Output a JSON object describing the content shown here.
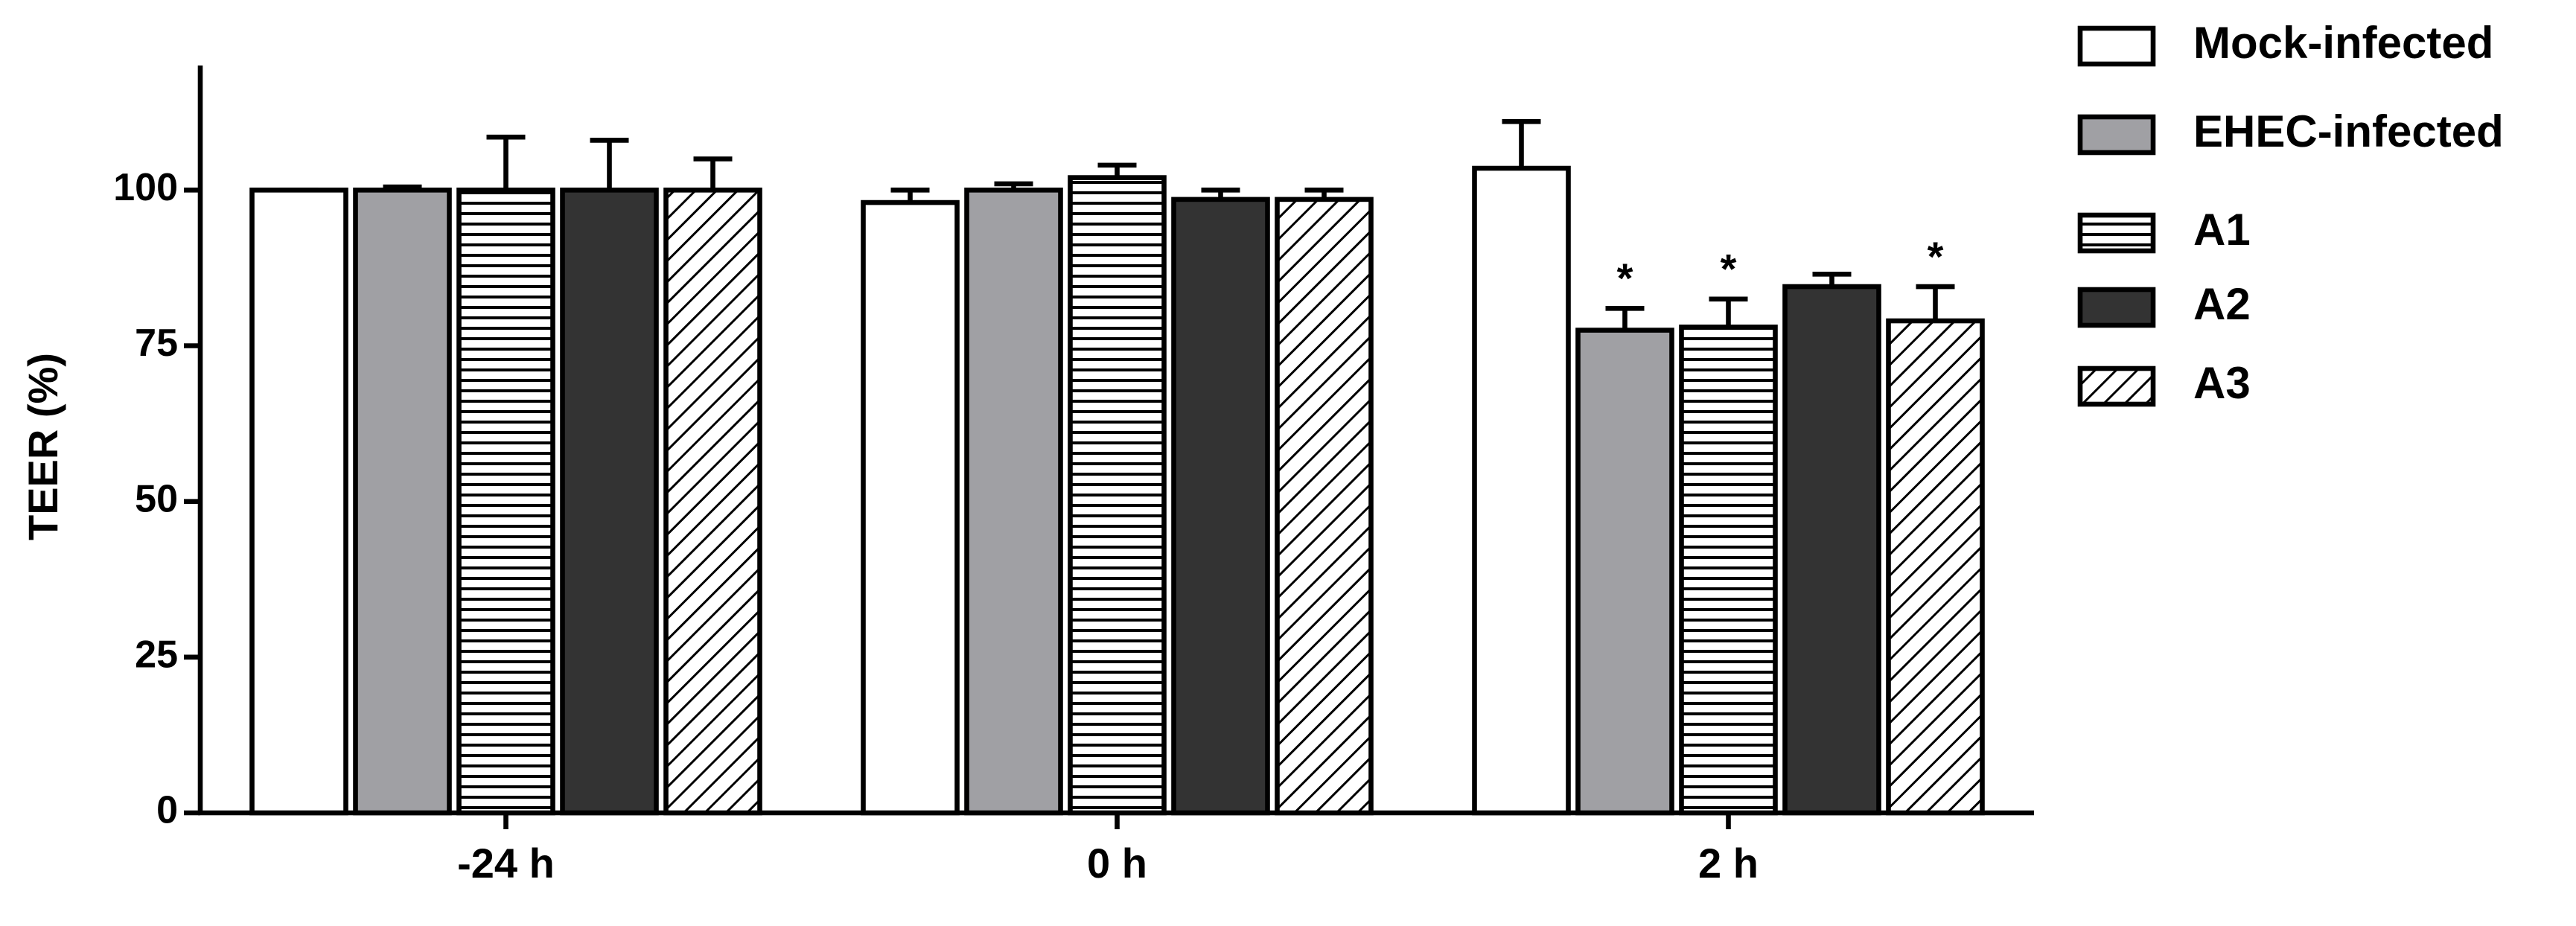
{
  "chart_data": {
    "type": "bar",
    "ylabel": "TEER (%)",
    "categories": [
      "-24 h",
      "0 h",
      "2 h"
    ],
    "ylim": [
      0,
      120
    ],
    "yticks": [
      0,
      25,
      50,
      75,
      100
    ],
    "series": [
      {
        "name": "Mock-infected",
        "color": "#ffffff",
        "pattern": "none",
        "values": [
          100,
          98,
          103.5
        ],
        "errors": [
          0,
          2,
          7.5
        ]
      },
      {
        "name": "EHEC-infected",
        "color": "#a0a0a4",
        "pattern": "none",
        "values": [
          100,
          100,
          77.5
        ],
        "errors": [
          0.5,
          1,
          3.5
        ]
      },
      {
        "name": "A1",
        "color": "#ffffff",
        "pattern": "horizontal",
        "values": [
          100,
          102,
          78
        ],
        "errors": [
          8.5,
          2,
          4.5
        ]
      },
      {
        "name": "A2",
        "color": "#333333",
        "pattern": "none",
        "values": [
          100,
          98.5,
          84.5
        ],
        "errors": [
          8,
          1.5,
          2
        ]
      },
      {
        "name": "A3",
        "color": "#ffffff",
        "pattern": "diagonal",
        "values": [
          100,
          98.5,
          79
        ],
        "errors": [
          5,
          1.5,
          5.5
        ]
      }
    ],
    "annotations": [
      {
        "text": "*",
        "category": "2 h",
        "series": "EHEC-infected"
      },
      {
        "text": "*",
        "category": "2 h",
        "series": "A1"
      },
      {
        "text": "*",
        "category": "2 h",
        "series": "A3"
      }
    ]
  }
}
